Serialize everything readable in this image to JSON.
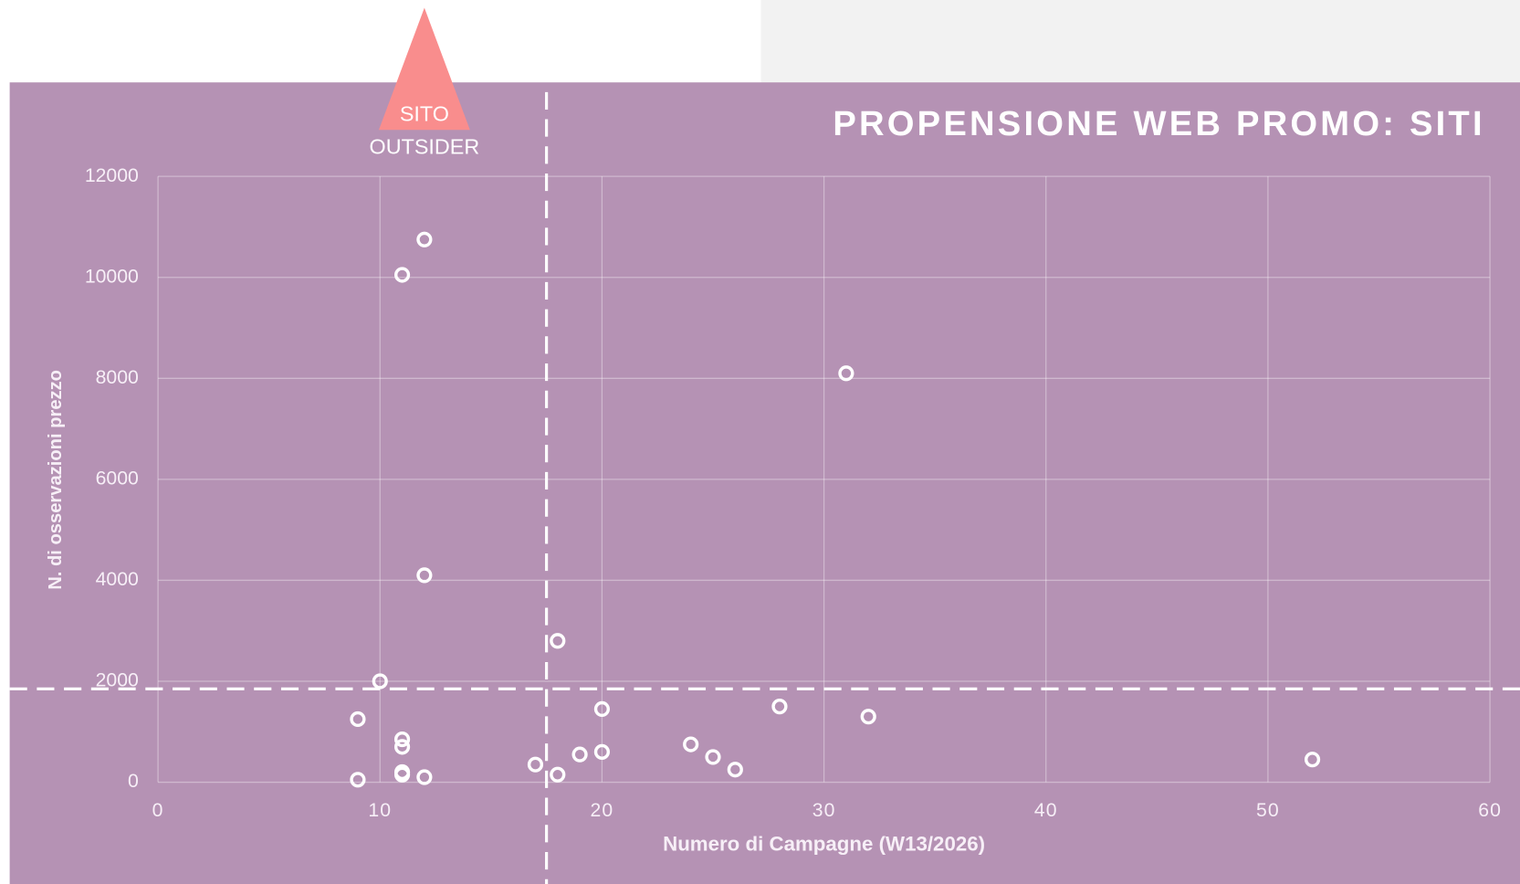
{
  "chart_data": {
    "type": "scatter",
    "title": "PROPENSIONE WEB PROMO: SITI",
    "xlabel": "Numero di Campagne (W13/2026)",
    "ylabel": "N. di osservazioni prezzo",
    "x": [
      12,
      11,
      31,
      12,
      18,
      10,
      9,
      11,
      11,
      11,
      11,
      12,
      9,
      17,
      18,
      19,
      20,
      20,
      24,
      25,
      26,
      28,
      32,
      52
    ],
    "values": [
      10750,
      10050,
      8100,
      4100,
      2800,
      2000,
      1250,
      850,
      700,
      200,
      150,
      100,
      50,
      350,
      150,
      550,
      600,
      1450,
      750,
      500,
      250,
      1500,
      1300,
      450
    ],
    "color": "#ffffff",
    "background": "#b592b4",
    "xlim": [
      0,
      60
    ],
    "xticks": [
      0,
      10,
      20,
      30,
      40,
      50,
      60
    ],
    "ylim": [
      0,
      12000
    ],
    "yticks": [
      0,
      2000,
      4000,
      6000,
      8000,
      10000,
      12000
    ],
    "grid": true,
    "reference_lines": {
      "x": 17.5,
      "y": 1850
    },
    "annotation": {
      "lines": [
        "SITO",
        "OUTSIDER"
      ],
      "x": 12,
      "color": "#f98d8d"
    }
  }
}
